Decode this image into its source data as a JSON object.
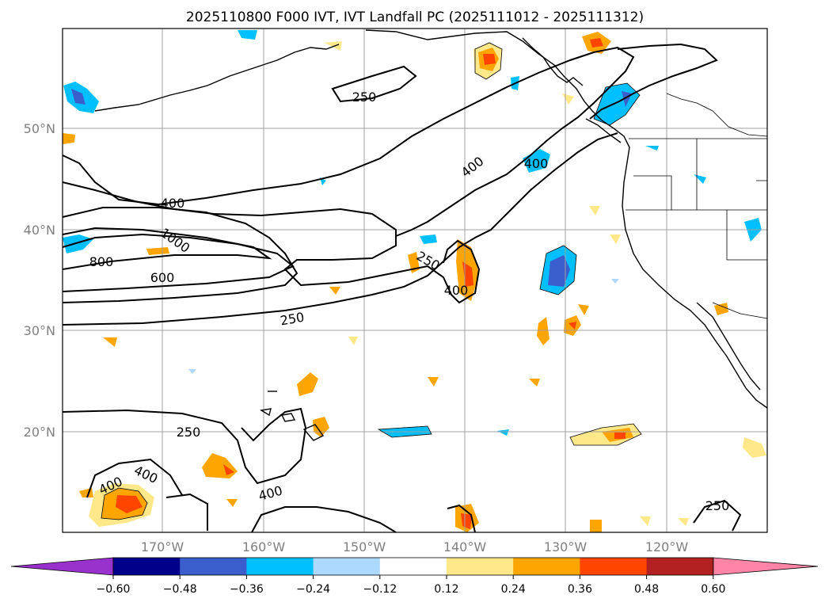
{
  "title": "2025110800 F000 IVT, IVT Landfall PC (2025111012 - 2025111312)",
  "latitude_labels": [
    "50°N",
    "40°N",
    "30°N",
    "20°N"
  ],
  "longitude_labels": [
    "170°W",
    "160°W",
    "150°W",
    "140°W",
    "130°W",
    "120°W"
  ],
  "colorbar": {
    "tick_labels": [
      "−0.60",
      "−0.48",
      "−0.36",
      "−0.24",
      "−0.12",
      "0.12",
      "0.24",
      "0.36",
      "0.48",
      "0.60"
    ],
    "colors": [
      "#9932cc",
      "#00008b",
      "#3a5fcd",
      "#00bfff",
      "#add8ff",
      "#ffffff",
      "#ffe88a",
      "#ffa500",
      "#ff4500",
      "#b22222",
      "#ff85a8"
    ]
  },
  "contour_labels": [
    "250",
    "400",
    "400",
    "400",
    "1000",
    "800",
    "600",
    "250",
    "400",
    "250",
    "250",
    "400",
    "400",
    "400",
    "250"
  ],
  "colors": {
    "positive_shading": [
      "#ffe88a",
      "#ffa500",
      "#ff4500"
    ],
    "negative_shading": [
      "#add8ff",
      "#00bfff",
      "#3a5fcd"
    ],
    "gridline": "#a0a0a0",
    "contour": "#000000"
  }
}
